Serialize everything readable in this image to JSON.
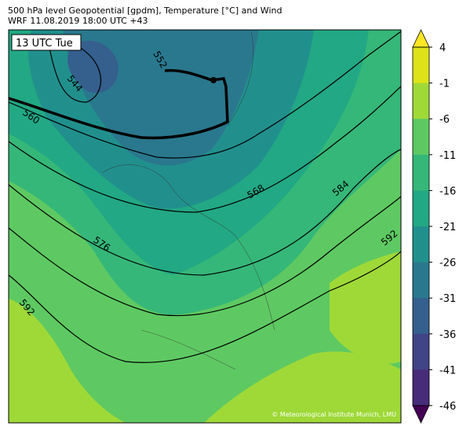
{
  "title": [
    "500 hPa level Geopotential [gpdm], Temperature [°C] and Wind",
    "WRF 11.08.2019 18:00 UTC +43"
  ],
  "time_label": "13 UTC Tue",
  "contour_labels": [
    "552",
    "544",
    "560",
    "568",
    "584",
    "576",
    "592",
    "592"
  ],
  "copyright": "© Meteorological Institute Munich, LMU",
  "colorbar": {
    "ticks": [
      4,
      -1,
      -6,
      -11,
      -16,
      -21,
      -26,
      -31,
      -36,
      -41,
      -46
    ],
    "lim": [
      -46,
      4
    ],
    "colors": [
      "#dde318",
      "#9fd938",
      "#5ec962",
      "#35b779",
      "#22a884",
      "#21908d",
      "#2a788e",
      "#355f8d",
      "#414487",
      "#472c7a"
    ],
    "extend_colors": [
      "#fde725",
      "#440154"
    ]
  }
}
